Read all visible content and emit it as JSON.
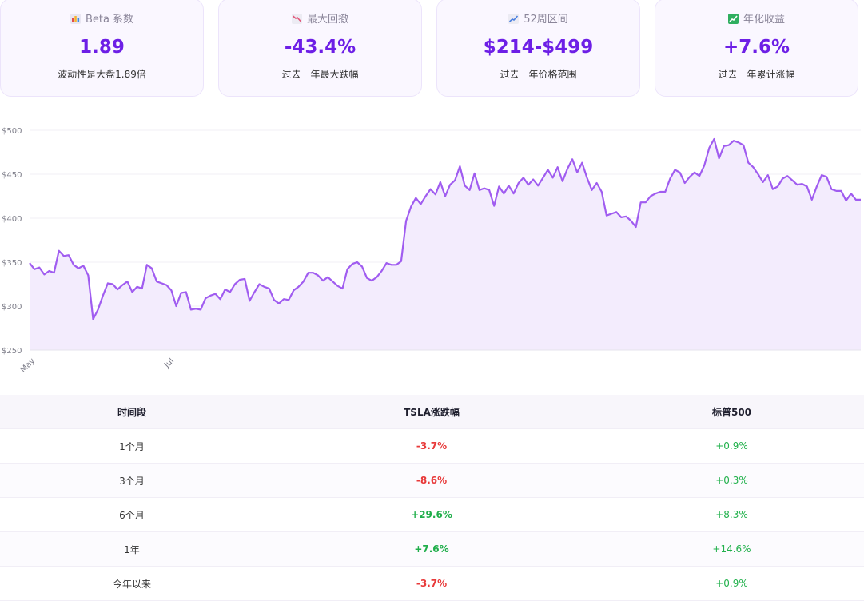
{
  "cards": [
    {
      "icon": "bar-chart-icon",
      "label": "Beta 系数",
      "value": "1.89",
      "sub": "波动性是大盘1.89倍"
    },
    {
      "icon": "chart-decreasing-icon",
      "label": "最大回撤",
      "value": "-43.4%",
      "sub": "过去一年最大跌幅"
    },
    {
      "icon": "chart-increasing-icon",
      "label": "52周区间",
      "value": "$214-$499",
      "sub": "过去一年价格范围"
    },
    {
      "icon": "chart-yen-icon",
      "label": "年化收益",
      "value": "+7.6%",
      "sub": "过去一年累计涨幅"
    }
  ],
  "chart_data": {
    "type": "area",
    "title": "",
    "xlabel": "",
    "ylabel": "",
    "ylim": [
      250,
      500
    ],
    "y_ticks": [
      "$500",
      "$450",
      "$400",
      "$350",
      "$300",
      "$250"
    ],
    "x_ticks": [
      "May",
      "Jul"
    ],
    "line_color": "#a05cf0",
    "fill_color": "#f3ecfd",
    "values": [
      349,
      342,
      344,
      336,
      340,
      338,
      363,
      357,
      358,
      347,
      343,
      346,
      335,
      285,
      296,
      312,
      326,
      325,
      319,
      324,
      328,
      316,
      322,
      320,
      347,
      343,
      328,
      326,
      324,
      318,
      300,
      315,
      316,
      296,
      297,
      296,
      309,
      312,
      314,
      308,
      319,
      316,
      325,
      330,
      331,
      306,
      316,
      325,
      322,
      320,
      307,
      303,
      308,
      307,
      318,
      322,
      328,
      338,
      338,
      335,
      329,
      333,
      328,
      323,
      320,
      342,
      348,
      350,
      345,
      332,
      329,
      333,
      340,
      349,
      347,
      347,
      351,
      397,
      413,
      423,
      416,
      425,
      433,
      427,
      441,
      425,
      438,
      443,
      459,
      437,
      432,
      451,
      432,
      434,
      432,
      414,
      436,
      428,
      437,
      428,
      440,
      446,
      438,
      444,
      437,
      446,
      455,
      446,
      458,
      442,
      456,
      467,
      452,
      463,
      446,
      432,
      440,
      430,
      403,
      405,
      407,
      401,
      402,
      397,
      390,
      418,
      418,
      425,
      428,
      430,
      430,
      445,
      455,
      452,
      440,
      447,
      452,
      448,
      460,
      480,
      490,
      468,
      482,
      483,
      488,
      486,
      483,
      463,
      458,
      450,
      441,
      449,
      433,
      436,
      445,
      448,
      443,
      438,
      439,
      436,
      421,
      436,
      449,
      447,
      433,
      431,
      431,
      420,
      428,
      421,
      421
    ]
  },
  "table": {
    "headers": [
      "时间段",
      "TSLA涨跌幅",
      "标普500"
    ],
    "rows": [
      {
        "period": "1个月",
        "tsla": "-3.7%",
        "spx": "+0.9%",
        "trend": "neg"
      },
      {
        "period": "3个月",
        "tsla": "-8.6%",
        "spx": "+0.3%",
        "trend": "neg"
      },
      {
        "period": "6个月",
        "tsla": "+29.6%",
        "spx": "+8.3%",
        "trend": "pos"
      },
      {
        "period": "1年",
        "tsla": "+7.6%",
        "spx": "+14.6%",
        "trend": "pos"
      },
      {
        "period": "今年以来",
        "tsla": "-3.7%",
        "spx": "+0.9%",
        "trend": "neg"
      }
    ]
  }
}
